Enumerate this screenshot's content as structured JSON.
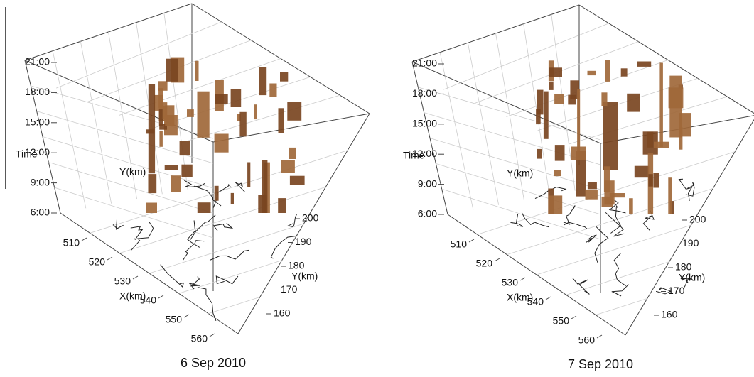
{
  "chart_data": [
    {
      "type": "space-time-cube",
      "caption": "6 Sep 2010",
      "zlabel": "Time",
      "xlabel": "X(km)",
      "ylabel": "Y(km)",
      "inner_label": "Y(km)",
      "zlim": [
        6,
        21
      ],
      "zticks": [
        {
          "value": 21,
          "label": "21:00"
        },
        {
          "value": 18,
          "label": "18:00"
        },
        {
          "value": 15,
          "label": "15:00"
        },
        {
          "value": 12,
          "label": "12:00"
        },
        {
          "value": 9,
          "label": "9:00"
        },
        {
          "value": 6,
          "label": "6:00"
        }
      ],
      "xlim": [
        510,
        560
      ],
      "xticks": [
        510,
        520,
        530,
        540,
        550,
        560
      ],
      "ylim": [
        160,
        200
      ],
      "yticks": [
        160,
        170,
        180,
        190,
        200
      ]
    },
    {
      "type": "space-time-cube",
      "caption": "7 Sep 2010",
      "zlabel": "Time",
      "xlabel": "X(km)",
      "ylabel": "Y(km)",
      "inner_label": "Y(km)",
      "zlim": [
        6,
        21
      ],
      "zticks": [
        {
          "value": 21,
          "label": "21:00"
        },
        {
          "value": 18,
          "label": "18:00"
        },
        {
          "value": 15,
          "label": "15:00"
        },
        {
          "value": 12,
          "label": "12:00"
        },
        {
          "value": 9,
          "label": "9:00"
        },
        {
          "value": 6,
          "label": "6:00"
        }
      ],
      "xlim": [
        510,
        560
      ],
      "xticks": [
        510,
        520,
        530,
        540,
        550,
        560
      ],
      "ylim": [
        160,
        200
      ],
      "yticks": [
        160,
        170,
        180,
        190,
        200
      ]
    }
  ]
}
